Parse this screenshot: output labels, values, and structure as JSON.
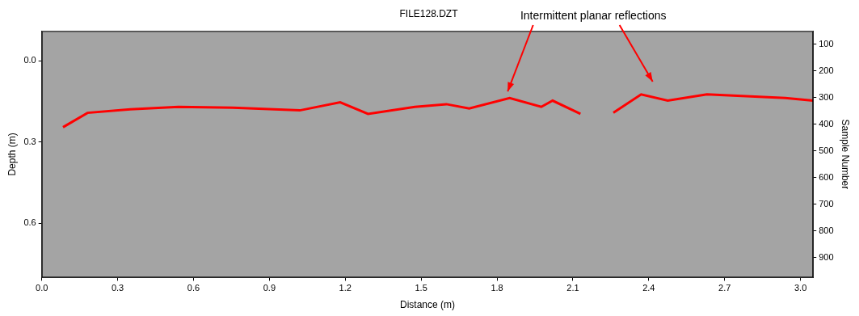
{
  "chart_data": {
    "type": "line",
    "title": "FILE128.DZT",
    "annotation": "Intermittent planar reflections",
    "x_label": "Distance (m)",
    "y_label": "Depth (m)",
    "y2_label": "Sample Number",
    "x": [
      0.084,
      0.181,
      0.35,
      0.54,
      0.756,
      1.02,
      1.18,
      1.29,
      1.475,
      1.6,
      1.69,
      1.85,
      1.975,
      2.02,
      2.13,
      2.2,
      2.26,
      2.37,
      2.475,
      2.63,
      2.94,
      3.05
    ],
    "values": [
      0.245,
      0.192,
      0.179,
      0.17,
      0.173,
      0.183,
      0.153,
      0.196,
      0.17,
      0.16,
      0.176,
      0.137,
      0.17,
      0.147,
      0.196,
      null,
      0.192,
      0.124,
      0.147,
      0.124,
      0.137,
      0.147
    ],
    "color": "#ff0000",
    "xlim": [
      0,
      3.05
    ],
    "xticks": [
      {
        "value": 0,
        "label": "0.0"
      },
      0.3,
      0.6,
      0.9,
      1.2,
      1.5,
      1.8,
      2.1,
      2.4,
      2.7,
      {
        "value": 3,
        "label": "3.0"
      }
    ],
    "ylim": [
      -0.11,
      0.8
    ],
    "yticks": [
      {
        "value": 0,
        "label": "0.0"
      },
      0.3,
      0.6
    ],
    "y2lim": [
      50,
      975
    ],
    "y2ticks": [
      100,
      200,
      300,
      400,
      500,
      600,
      700,
      800,
      900
    ],
    "grid": false
  }
}
